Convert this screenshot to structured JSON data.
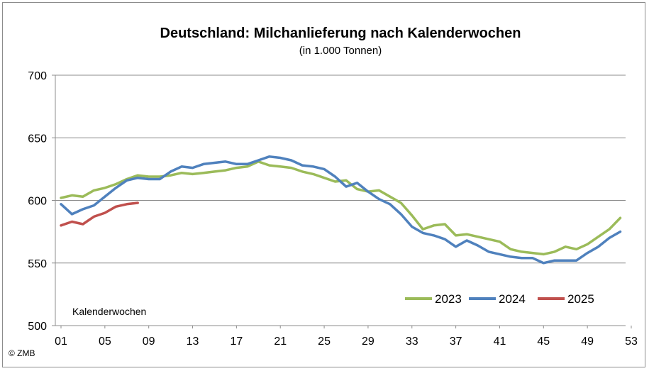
{
  "chart_data": {
    "type": "line",
    "title": "Deutschland: Milchanlieferung nach Kalenderwochen",
    "subtitle": "(in 1.000 Tonnen)",
    "xlabel": "Kalenderwochen",
    "ylabel": "",
    "ylim": [
      500,
      700
    ],
    "yticks": [
      "500",
      "550",
      "600",
      "650",
      "700"
    ],
    "xlim": [
      1,
      53
    ],
    "xticks": [
      "01",
      "05",
      "09",
      "13",
      "17",
      "21",
      "25",
      "29",
      "33",
      "37",
      "41",
      "45",
      "49",
      "53"
    ],
    "grid": "horizontal",
    "legend_position": "bottom-right",
    "copyright": "© ZMB",
    "series": [
      {
        "name": "2023",
        "color": "#9bbb59",
        "values": [
          602,
          604,
          603,
          608,
          610,
          613,
          617,
          620,
          619,
          619,
          620,
          622,
          621,
          622,
          623,
          624,
          626,
          627,
          631,
          628,
          627,
          626,
          623,
          621,
          618,
          615,
          616,
          609,
          607,
          608,
          603,
          598,
          588,
          577,
          580,
          581,
          572,
          573,
          571,
          569,
          567,
          561,
          559,
          558,
          557,
          559,
          563,
          561,
          565,
          571,
          577,
          586
        ]
      },
      {
        "name": "2024",
        "color": "#4f81bd",
        "values": [
          597,
          589,
          593,
          596,
          603,
          610,
          616,
          618,
          617,
          617,
          623,
          627,
          626,
          629,
          630,
          631,
          629,
          629,
          632,
          635,
          634,
          632,
          628,
          627,
          625,
          619,
          611,
          614,
          607,
          601,
          597,
          589,
          579,
          574,
          572,
          569,
          563,
          568,
          564,
          559,
          557,
          555,
          554,
          554,
          550,
          552,
          552,
          552,
          558,
          563,
          570,
          575
        ]
      },
      {
        "name": "2025",
        "color": "#c0504d",
        "values": [
          580,
          583,
          581,
          587,
          590,
          595,
          597,
          598
        ]
      }
    ]
  }
}
